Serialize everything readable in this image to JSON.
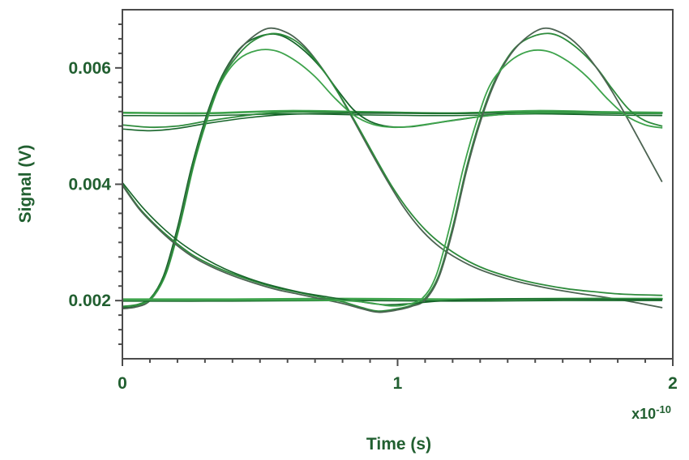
{
  "chart_data": {
    "type": "line",
    "title": "",
    "xlabel": "Time (s)",
    "ylabel": "Signal (V)",
    "x_multiplier_base": "x10",
    "x_multiplier_exp": "-10",
    "x_unit_note": "x values in units of 1e-10 seconds (axis multiplier x10^-10)",
    "xlim": [
      0,
      2
    ],
    "ylim": [
      0.001,
      0.007
    ],
    "x_major_ticks": [
      0,
      1,
      2
    ],
    "x_tick_labels": [
      "0",
      "1",
      "2"
    ],
    "x_minor_step": 0.1,
    "y_major_ticks": [
      0.002,
      0.004,
      0.006
    ],
    "y_tick_labels": [
      "0.002",
      "0.004",
      "0.006"
    ],
    "y_minor_step": 0.00025,
    "grid": false,
    "legend": null,
    "axis_color": "#4b4b4b",
    "label_color": "#215f30",
    "colors": {
      "bright_green": "#3ea34c",
      "mid_green": "#2e8b3c",
      "dark_green": "#17652a",
      "gray_green": "#4c6352"
    },
    "series": [
      {
        "name": "flat_high_1",
        "color": "#3ea34c",
        "width": 2.6,
        "points": [
          [
            0,
            0.00523
          ],
          [
            0.3,
            0.00522
          ],
          [
            0.6,
            0.00526
          ],
          [
            0.9,
            0.00524
          ],
          [
            1.2,
            0.00522
          ],
          [
            1.5,
            0.00526
          ],
          [
            1.75,
            0.00524
          ],
          [
            1.96,
            0.00523
          ]
        ]
      },
      {
        "name": "flat_high_2",
        "color": "#17652a",
        "width": 1.5,
        "points": [
          [
            0,
            0.00518
          ],
          [
            0.3,
            0.00518
          ],
          [
            0.6,
            0.00521
          ],
          [
            0.9,
            0.00519
          ],
          [
            1.2,
            0.00518
          ],
          [
            1.5,
            0.00521
          ],
          [
            1.75,
            0.00519
          ],
          [
            1.96,
            0.00518
          ]
        ]
      },
      {
        "name": "settle_from_left_1",
        "color": "#2e8b3c",
        "width": 1.8,
        "points": [
          [
            0,
            0.00502
          ],
          [
            0.1,
            0.00498
          ],
          [
            0.2,
            0.005
          ],
          [
            0.3,
            0.00508
          ],
          [
            0.4,
            0.00515
          ],
          [
            0.5,
            0.00521
          ],
          [
            0.6,
            0.00524
          ],
          [
            0.8,
            0.00524
          ],
          [
            1,
            0.00523
          ],
          [
            1.2,
            0.00522
          ],
          [
            1.4,
            0.00523
          ],
          [
            1.6,
            0.00524
          ],
          [
            1.8,
            0.00523
          ],
          [
            1.96,
            0.00522
          ]
        ]
      },
      {
        "name": "settle_from_left_2",
        "color": "#17652a",
        "width": 1.6,
        "points": [
          [
            0,
            0.00495
          ],
          [
            0.1,
            0.00492
          ],
          [
            0.2,
            0.00496
          ],
          [
            0.3,
            0.00504
          ],
          [
            0.45,
            0.00514
          ],
          [
            0.6,
            0.0052
          ],
          [
            0.8,
            0.00522
          ],
          [
            1,
            0.00522
          ],
          [
            1.3,
            0.00522
          ],
          [
            1.6,
            0.00522
          ],
          [
            1.96,
            0.00521
          ]
        ]
      },
      {
        "name": "rise0_then_settle",
        "color": "#17652a",
        "width": 1.8,
        "points": [
          [
            0,
            0.00188
          ],
          [
            0.05,
            0.0019
          ],
          [
            0.1,
            0.00203
          ],
          [
            0.15,
            0.00243
          ],
          [
            0.2,
            0.00325
          ],
          [
            0.25,
            0.00427
          ],
          [
            0.3,
            0.0051
          ],
          [
            0.35,
            0.00574
          ],
          [
            0.4,
            0.00617
          ],
          [
            0.45,
            0.00643
          ],
          [
            0.52,
            0.00657
          ],
          [
            0.58,
            0.00655
          ],
          [
            0.65,
            0.00634
          ],
          [
            0.72,
            0.00601
          ],
          [
            0.78,
            0.00563
          ],
          [
            0.84,
            0.00528
          ],
          [
            0.9,
            0.00508
          ],
          [
            0.97,
            0.00499
          ],
          [
            1.05,
            0.00499
          ],
          [
            1.15,
            0.00506
          ],
          [
            1.25,
            0.00513
          ],
          [
            1.35,
            0.00519
          ],
          [
            1.5,
            0.00523
          ],
          [
            1.7,
            0.00523
          ],
          [
            1.96,
            0.00522
          ]
        ]
      },
      {
        "name": "rise0_then_fall_peak_high",
        "color": "#4c6352",
        "width": 1.8,
        "points": [
          [
            0,
            0.00186
          ],
          [
            0.05,
            0.00189
          ],
          [
            0.1,
            0.002
          ],
          [
            0.15,
            0.00238
          ],
          [
            0.2,
            0.00318
          ],
          [
            0.25,
            0.0042
          ],
          [
            0.3,
            0.00505
          ],
          [
            0.35,
            0.0057
          ],
          [
            0.4,
            0.00615
          ],
          [
            0.46,
            0.00648
          ],
          [
            0.53,
            0.00668
          ],
          [
            0.6,
            0.0066
          ],
          [
            0.66,
            0.00638
          ],
          [
            0.72,
            0.00603
          ],
          [
            0.78,
            0.0056
          ],
          [
            0.84,
            0.0051
          ],
          [
            0.9,
            0.00458
          ],
          [
            0.96,
            0.00408
          ],
          [
            1.02,
            0.00362
          ],
          [
            1.08,
            0.00325
          ],
          [
            1.14,
            0.00297
          ],
          [
            1.2,
            0.00277
          ],
          [
            1.28,
            0.00257
          ],
          [
            1.36,
            0.00243
          ],
          [
            1.45,
            0.00231
          ],
          [
            1.55,
            0.00221
          ],
          [
            1.65,
            0.00213
          ],
          [
            1.75,
            0.00206
          ],
          [
            1.85,
            0.00198
          ],
          [
            1.96,
            0.00188
          ]
        ]
      },
      {
        "name": "rise0_then_settle_low_peak",
        "color": "#3ea34c",
        "width": 1.8,
        "points": [
          [
            0,
            0.0019
          ],
          [
            0.06,
            0.00193
          ],
          [
            0.11,
            0.00206
          ],
          [
            0.16,
            0.00248
          ],
          [
            0.21,
            0.00332
          ],
          [
            0.26,
            0.00434
          ],
          [
            0.31,
            0.00514
          ],
          [
            0.36,
            0.00576
          ],
          [
            0.42,
            0.00614
          ],
          [
            0.49,
            0.0063
          ],
          [
            0.56,
            0.00629
          ],
          [
            0.63,
            0.00612
          ],
          [
            0.7,
            0.00585
          ],
          [
            0.77,
            0.00549
          ],
          [
            0.84,
            0.00519
          ],
          [
            0.91,
            0.00503
          ],
          [
            0.98,
            0.00498
          ],
          [
            1.06,
            0.005
          ],
          [
            1.16,
            0.00507
          ],
          [
            1.26,
            0.00514
          ],
          [
            1.38,
            0.0052
          ],
          [
            1.55,
            0.00523
          ],
          [
            1.96,
            0.00522
          ]
        ]
      },
      {
        "name": "rise0_then_fall_b",
        "color": "#2e8b3c",
        "width": 1.8,
        "points": [
          [
            0,
            0.0019
          ],
          [
            0.06,
            0.00194
          ],
          [
            0.11,
            0.00208
          ],
          [
            0.16,
            0.0025
          ],
          [
            0.21,
            0.00335
          ],
          [
            0.26,
            0.00438
          ],
          [
            0.31,
            0.00518
          ],
          [
            0.36,
            0.0058
          ],
          [
            0.42,
            0.00622
          ],
          [
            0.48,
            0.00648
          ],
          [
            0.55,
            0.00659
          ],
          [
            0.62,
            0.00649
          ],
          [
            0.68,
            0.00625
          ],
          [
            0.74,
            0.00589
          ],
          [
            0.8,
            0.00545
          ],
          [
            0.86,
            0.00496
          ],
          [
            0.92,
            0.00445
          ],
          [
            0.98,
            0.00396
          ],
          [
            1.04,
            0.00355
          ],
          [
            1.1,
            0.00322
          ],
          [
            1.16,
            0.00297
          ],
          [
            1.24,
            0.00272
          ],
          [
            1.32,
            0.00254
          ],
          [
            1.42,
            0.00239
          ],
          [
            1.52,
            0.00228
          ],
          [
            1.62,
            0.0022
          ],
          [
            1.72,
            0.00215
          ],
          [
            1.82,
            0.00211
          ],
          [
            1.96,
            0.00209
          ]
        ]
      },
      {
        "name": "flat_low_1",
        "color": "#3ea34c",
        "width": 2.8,
        "points": [
          [
            0,
            0.00202
          ],
          [
            0.4,
            0.00202
          ],
          [
            0.8,
            0.00203
          ],
          [
            1.2,
            0.00202
          ],
          [
            1.6,
            0.00203
          ],
          [
            1.96,
            0.00203
          ]
        ]
      },
      {
        "name": "flat_low_2",
        "color": "#17652a",
        "width": 1.5,
        "points": [
          [
            0,
            0.00199
          ],
          [
            0.4,
            0.00199
          ],
          [
            0.8,
            0.002
          ],
          [
            1.2,
            0.00199
          ],
          [
            1.6,
            0.002
          ],
          [
            1.96,
            0.002
          ]
        ]
      },
      {
        "name": "tail_left_rise1_settle",
        "color": "#2e8b3c",
        "width": 1.8,
        "points": [
          [
            0,
            0.004
          ],
          [
            0.06,
            0.0036
          ],
          [
            0.12,
            0.0033
          ],
          [
            0.18,
            0.00305
          ],
          [
            0.25,
            0.0028
          ],
          [
            0.32,
            0.00262
          ],
          [
            0.4,
            0.00246
          ],
          [
            0.48,
            0.00233
          ],
          [
            0.56,
            0.00222
          ],
          [
            0.64,
            0.00214
          ],
          [
            0.72,
            0.00206
          ],
          [
            0.8,
            0.00198
          ],
          [
            0.87,
            0.00188
          ],
          [
            0.93,
            0.00182
          ],
          [
            1,
            0.00186
          ],
          [
            1.05,
            0.00192
          ],
          [
            1.1,
            0.00204
          ],
          [
            1.15,
            0.00244
          ],
          [
            1.2,
            0.00326
          ],
          [
            1.25,
            0.00428
          ],
          [
            1.3,
            0.00511
          ],
          [
            1.35,
            0.00575
          ],
          [
            1.4,
            0.00618
          ],
          [
            1.45,
            0.00644
          ],
          [
            1.52,
            0.00658
          ],
          [
            1.58,
            0.00656
          ],
          [
            1.65,
            0.00635
          ],
          [
            1.72,
            0.00602
          ],
          [
            1.78,
            0.00564
          ],
          [
            1.84,
            0.00529
          ],
          [
            1.9,
            0.00509
          ],
          [
            1.96,
            0.005
          ]
        ]
      },
      {
        "name": "tail_left_rise1_fall",
        "color": "#4c6352",
        "width": 1.8,
        "points": [
          [
            0,
            0.00398
          ],
          [
            0.06,
            0.00358
          ],
          [
            0.12,
            0.00328
          ],
          [
            0.18,
            0.00302
          ],
          [
            0.25,
            0.00277
          ],
          [
            0.32,
            0.00259
          ],
          [
            0.4,
            0.00243
          ],
          [
            0.48,
            0.0023
          ],
          [
            0.56,
            0.00219
          ],
          [
            0.64,
            0.00211
          ],
          [
            0.72,
            0.00203
          ],
          [
            0.8,
            0.00195
          ],
          [
            0.87,
            0.00186
          ],
          [
            0.93,
            0.0018
          ],
          [
            1,
            0.00184
          ],
          [
            1.05,
            0.0019
          ],
          [
            1.1,
            0.00201
          ],
          [
            1.15,
            0.0024
          ],
          [
            1.2,
            0.0032
          ],
          [
            1.25,
            0.00422
          ],
          [
            1.3,
            0.00506
          ],
          [
            1.35,
            0.00571
          ],
          [
            1.4,
            0.00616
          ],
          [
            1.46,
            0.00649
          ],
          [
            1.53,
            0.00668
          ],
          [
            1.6,
            0.00659
          ],
          [
            1.66,
            0.00637
          ],
          [
            1.72,
            0.00602
          ],
          [
            1.78,
            0.00559
          ],
          [
            1.84,
            0.00509
          ],
          [
            1.9,
            0.00457
          ],
          [
            1.96,
            0.00405
          ]
        ]
      },
      {
        "name": "tail_left_stay_low",
        "color": "#17652a",
        "width": 1.6,
        "points": [
          [
            0,
            0.00403
          ],
          [
            0.07,
            0.00362
          ],
          [
            0.14,
            0.00328
          ],
          [
            0.21,
            0.003
          ],
          [
            0.29,
            0.00275
          ],
          [
            0.37,
            0.00255
          ],
          [
            0.46,
            0.00238
          ],
          [
            0.55,
            0.00225
          ],
          [
            0.65,
            0.00214
          ],
          [
            0.75,
            0.00206
          ],
          [
            0.85,
            0.00199
          ],
          [
            0.95,
            0.00193
          ],
          [
            1.05,
            0.00195
          ],
          [
            1.15,
            0.00199
          ],
          [
            1.3,
            0.00202
          ],
          [
            1.5,
            0.00203
          ],
          [
            1.96,
            0.00202
          ]
        ]
      },
      {
        "name": "rise1_from_low_flat",
        "color": "#3ea34c",
        "width": 1.8,
        "points": [
          [
            0,
            0.00201
          ],
          [
            0.5,
            0.00201
          ],
          [
            0.8,
            0.002
          ],
          [
            0.9,
            0.00196
          ],
          [
            0.97,
            0.00191
          ],
          [
            1.03,
            0.00193
          ],
          [
            1.09,
            0.00204
          ],
          [
            1.14,
            0.00243
          ],
          [
            1.19,
            0.00328
          ],
          [
            1.24,
            0.0043
          ],
          [
            1.29,
            0.00512
          ],
          [
            1.34,
            0.00574
          ],
          [
            1.41,
            0.00612
          ],
          [
            1.48,
            0.00629
          ],
          [
            1.55,
            0.00628
          ],
          [
            1.62,
            0.00611
          ],
          [
            1.69,
            0.00584
          ],
          [
            1.76,
            0.00548
          ],
          [
            1.83,
            0.00518
          ],
          [
            1.9,
            0.00502
          ],
          [
            1.96,
            0.00497
          ]
        ]
      }
    ]
  }
}
